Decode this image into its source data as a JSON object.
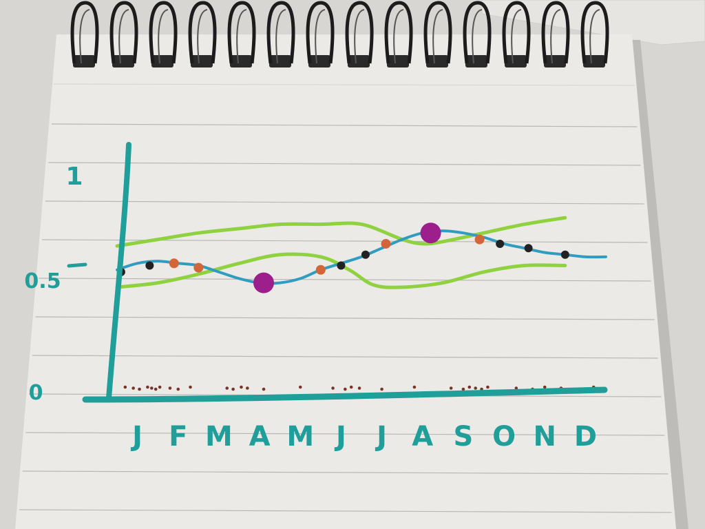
{
  "notebook": {
    "paper_color": "#eceae6",
    "rule_color": "#b9b7b3",
    "ring_color": "#1c1c1c"
  },
  "chart_data": {
    "type": "line",
    "title": "",
    "xlabel": "",
    "ylabel": "",
    "x_tick_labels": [
      "J",
      "F",
      "M",
      "A",
      "M",
      "J",
      "J",
      "A",
      "S",
      "O",
      "N",
      "D"
    ],
    "y_tick_labels": [
      {
        "label": "0",
        "value": 0
      },
      {
        "label": "0.5",
        "value": 0.5
      },
      {
        "label": "1",
        "value": 1
      }
    ],
    "xlim": [
      0,
      12
    ],
    "ylim": [
      0,
      1
    ],
    "grid": false,
    "legend": "none",
    "colors": {
      "axes": "#1f9e9a",
      "mean_line": "#2f9cc0",
      "band": "#8fd13f",
      "point_dark": "#222222",
      "point_orange": "#d2663a",
      "point_purple": "#9c1f8c",
      "baseline_dots": "#7a3325"
    },
    "series": [
      {
        "x": [
          0,
          0.5,
          1,
          1.5,
          2,
          2.5,
          3,
          3.5,
          4,
          4.5,
          5,
          5.5,
          6,
          6.5,
          7,
          7.5,
          8,
          8.5,
          9,
          9.5,
          10,
          10.5,
          11,
          11.5,
          12
        ],
        "values": [
          0.55,
          0.58,
          0.59,
          0.58,
          0.57,
          0.54,
          0.51,
          0.49,
          0.49,
          0.51,
          0.55,
          0.58,
          0.61,
          0.65,
          0.69,
          0.72,
          0.73,
          0.72,
          0.7,
          0.67,
          0.65,
          0.63,
          0.62,
          0.61,
          0.61
        ]
      },
      {
        "x": [
          0,
          1,
          2,
          3,
          4,
          5,
          6,
          7,
          7.5,
          8,
          9,
          10,
          11
        ],
        "values": [
          0.66,
          0.69,
          0.72,
          0.74,
          0.76,
          0.76,
          0.76,
          0.69,
          0.67,
          0.68,
          0.72,
          0.76,
          0.79
        ]
      },
      {
        "x": [
          0,
          1,
          2,
          3,
          4,
          5,
          5.7,
          6.3,
          7,
          8,
          9,
          10,
          11
        ],
        "values": [
          0.47,
          0.49,
          0.53,
          0.58,
          0.62,
          0.61,
          0.55,
          0.48,
          0.47,
          0.49,
          0.54,
          0.57,
          0.57
        ]
      }
    ],
    "markers": [
      {
        "x": 0.1,
        "y": 0.54,
        "kind": "dark"
      },
      {
        "x": 0.8,
        "y": 0.57,
        "kind": "dark"
      },
      {
        "x": 1.4,
        "y": 0.58,
        "kind": "orange"
      },
      {
        "x": 2.0,
        "y": 0.56,
        "kind": "orange"
      },
      {
        "x": 3.6,
        "y": 0.49,
        "kind": "purple"
      },
      {
        "x": 5.0,
        "y": 0.55,
        "kind": "orange"
      },
      {
        "x": 5.5,
        "y": 0.57,
        "kind": "dark"
      },
      {
        "x": 6.1,
        "y": 0.62,
        "kind": "dark"
      },
      {
        "x": 6.6,
        "y": 0.67,
        "kind": "orange"
      },
      {
        "x": 7.7,
        "y": 0.72,
        "kind": "purple"
      },
      {
        "x": 8.9,
        "y": 0.69,
        "kind": "orange"
      },
      {
        "x": 9.4,
        "y": 0.67,
        "kind": "dark"
      },
      {
        "x": 10.1,
        "y": 0.65,
        "kind": "dark"
      },
      {
        "x": 11.0,
        "y": 0.62,
        "kind": "dark"
      }
    ],
    "baseline_points_x": [
      0.2,
      0.4,
      0.55,
      0.75,
      0.85,
      0.95,
      1.05,
      1.3,
      1.5,
      1.8,
      2.7,
      2.85,
      3.05,
      3.2,
      3.6,
      4.5,
      5.3,
      5.6,
      5.75,
      5.95,
      6.5,
      7.3,
      8.2,
      8.5,
      8.65,
      8.8,
      8.95,
      9.1,
      9.8,
      10.2,
      10.5,
      10.9,
      11.4,
      11.7
    ]
  }
}
